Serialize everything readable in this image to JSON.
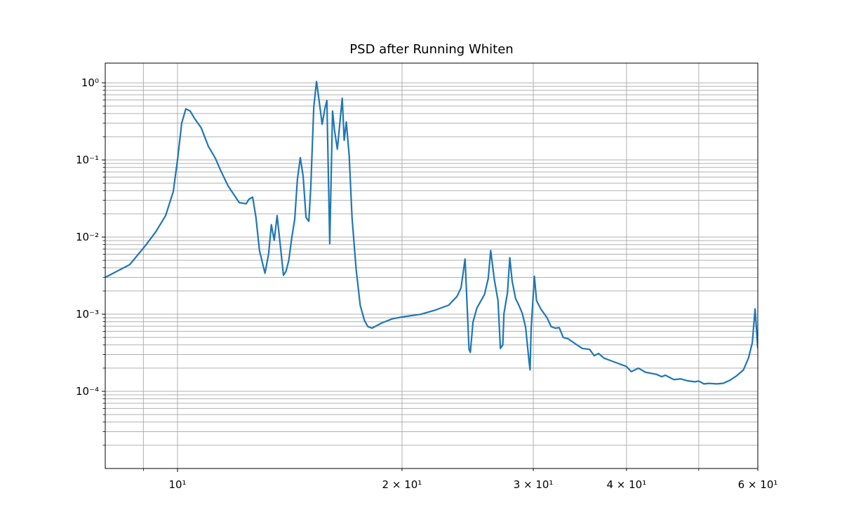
{
  "chart_data": {
    "type": "line",
    "title": "PSD after Running Whiten",
    "xscale": "log",
    "yscale": "log",
    "grid": true,
    "xlim": [
      8,
      60
    ],
    "ylim": [
      1e-05,
      1.8
    ],
    "xticks": [
      {
        "value": 10,
        "label": "10¹"
      },
      {
        "value": 20,
        "label": "2 × 10¹"
      },
      {
        "value": 30,
        "label": "3 × 10¹"
      },
      {
        "value": 40,
        "label": "4 × 10¹"
      },
      {
        "value": 60,
        "label": "6 × 10¹"
      }
    ],
    "xminor_ticks": [
      9,
      50
    ],
    "yticks": [
      {
        "value": 0.0001,
        "label": "10⁻⁴"
      },
      {
        "value": 0.001,
        "label": "10⁻³"
      },
      {
        "value": 0.01,
        "label": "10⁻²"
      },
      {
        "value": 0.1,
        "label": "10⁻¹"
      },
      {
        "value": 1,
        "label": "10⁰"
      }
    ],
    "yminor_ticks": [
      2e-05,
      3e-05,
      4e-05,
      5e-05,
      6e-05,
      7e-05,
      8e-05,
      9e-05,
      0.0002,
      0.0003,
      0.0004,
      0.0005,
      0.0006,
      0.0007,
      0.0008,
      0.0009,
      0.002,
      0.003,
      0.004,
      0.005,
      0.006,
      0.007,
      0.008,
      0.009,
      0.02,
      0.03,
      0.04,
      0.05,
      0.06,
      0.07,
      0.08,
      0.09,
      0.2,
      0.3,
      0.4,
      0.5,
      0.6,
      0.7,
      0.8,
      0.9
    ],
    "series": [
      {
        "color": "#1f77b4",
        "x": [
          8.0,
          8.63,
          9.07,
          9.35,
          9.64,
          9.87,
          10.0,
          10.13,
          10.26,
          10.4,
          10.53,
          10.76,
          11.0,
          11.24,
          11.41,
          11.69,
          12.1,
          12.36,
          12.47,
          12.61,
          12.74,
          12.88,
          13.1,
          13.25,
          13.36,
          13.48,
          13.6,
          13.75,
          13.87,
          13.98,
          14.1,
          14.23,
          14.36,
          14.48,
          14.61,
          14.74,
          14.87,
          15.0,
          15.09,
          15.23,
          15.36,
          15.49,
          15.63,
          15.76,
          15.86,
          16.0,
          16.14,
          16.24,
          16.38,
          16.63,
          16.73,
          16.84,
          16.99,
          17.14,
          17.36,
          17.58,
          17.81,
          18.0,
          18.23,
          18.79,
          19.4,
          20.0,
          21.2,
          22.1,
          23.1,
          23.7,
          24.0,
          24.3,
          24.6,
          24.7,
          24.9,
          25.2,
          25.8,
          26.1,
          26.3,
          26.6,
          26.9,
          27.1,
          27.3,
          27.4,
          27.7,
          27.9,
          28.1,
          28.4,
          28.7,
          29.0,
          29.3,
          29.6,
          29.7,
          29.8,
          30.1,
          30.3,
          30.7,
          31.3,
          31.7,
          32.1,
          32.5,
          32.9,
          33.4,
          34.2,
          34.9,
          35.7,
          36.2,
          36.7,
          37.3,
          38.1,
          39.0,
          40.0,
          40.6,
          41.5,
          42.4,
          43.9,
          44.6,
          45.1,
          46.3,
          47.3,
          48.3,
          49.4,
          50.0,
          50.8,
          51.6,
          52.8,
          53.9,
          55.1,
          56.2,
          57.4,
          58.3,
          59.0,
          59.5,
          60.0
        ],
        "values": [
          0.003,
          0.0044,
          0.0079,
          0.0117,
          0.019,
          0.039,
          0.1,
          0.3,
          0.46,
          0.43,
          0.35,
          0.26,
          0.15,
          0.105,
          0.075,
          0.046,
          0.028,
          0.027,
          0.031,
          0.033,
          0.018,
          0.0067,
          0.0034,
          0.0061,
          0.0145,
          0.0091,
          0.019,
          0.0071,
          0.0032,
          0.0036,
          0.005,
          0.0098,
          0.017,
          0.056,
          0.107,
          0.061,
          0.018,
          0.016,
          0.044,
          0.48,
          1.04,
          0.57,
          0.29,
          0.46,
          0.59,
          0.0082,
          0.43,
          0.24,
          0.138,
          0.63,
          0.18,
          0.31,
          0.114,
          0.018,
          0.0038,
          0.0013,
          0.00083,
          0.00069,
          0.00066,
          0.00077,
          0.00087,
          0.00092,
          0.001,
          0.00112,
          0.00131,
          0.0017,
          0.0022,
          0.0052,
          0.00035,
          0.00032,
          0.00079,
          0.0012,
          0.0018,
          0.0029,
          0.0067,
          0.0028,
          0.0015,
          0.00036,
          0.0004,
          0.00102,
          0.0019,
          0.0054,
          0.0027,
          0.0016,
          0.0013,
          0.00102,
          0.00067,
          0.00025,
          0.00019,
          0.00065,
          0.0031,
          0.0015,
          0.00117,
          0.0009,
          0.00069,
          0.00066,
          0.00067,
          0.0005,
          0.00048,
          0.00041,
          0.00036,
          0.00035,
          0.00029,
          0.00031,
          0.00027,
          0.00025,
          0.00023,
          0.00021,
          0.00018,
          0.0002,
          0.000177,
          0.000166,
          0.000155,
          0.000162,
          0.000142,
          0.000145,
          0.000137,
          0.000133,
          0.000136,
          0.000125,
          0.000127,
          0.000125,
          0.000127,
          0.00014,
          0.000159,
          0.00019,
          0.00027,
          0.00043,
          0.00117,
          0.00036
        ]
      }
    ]
  }
}
